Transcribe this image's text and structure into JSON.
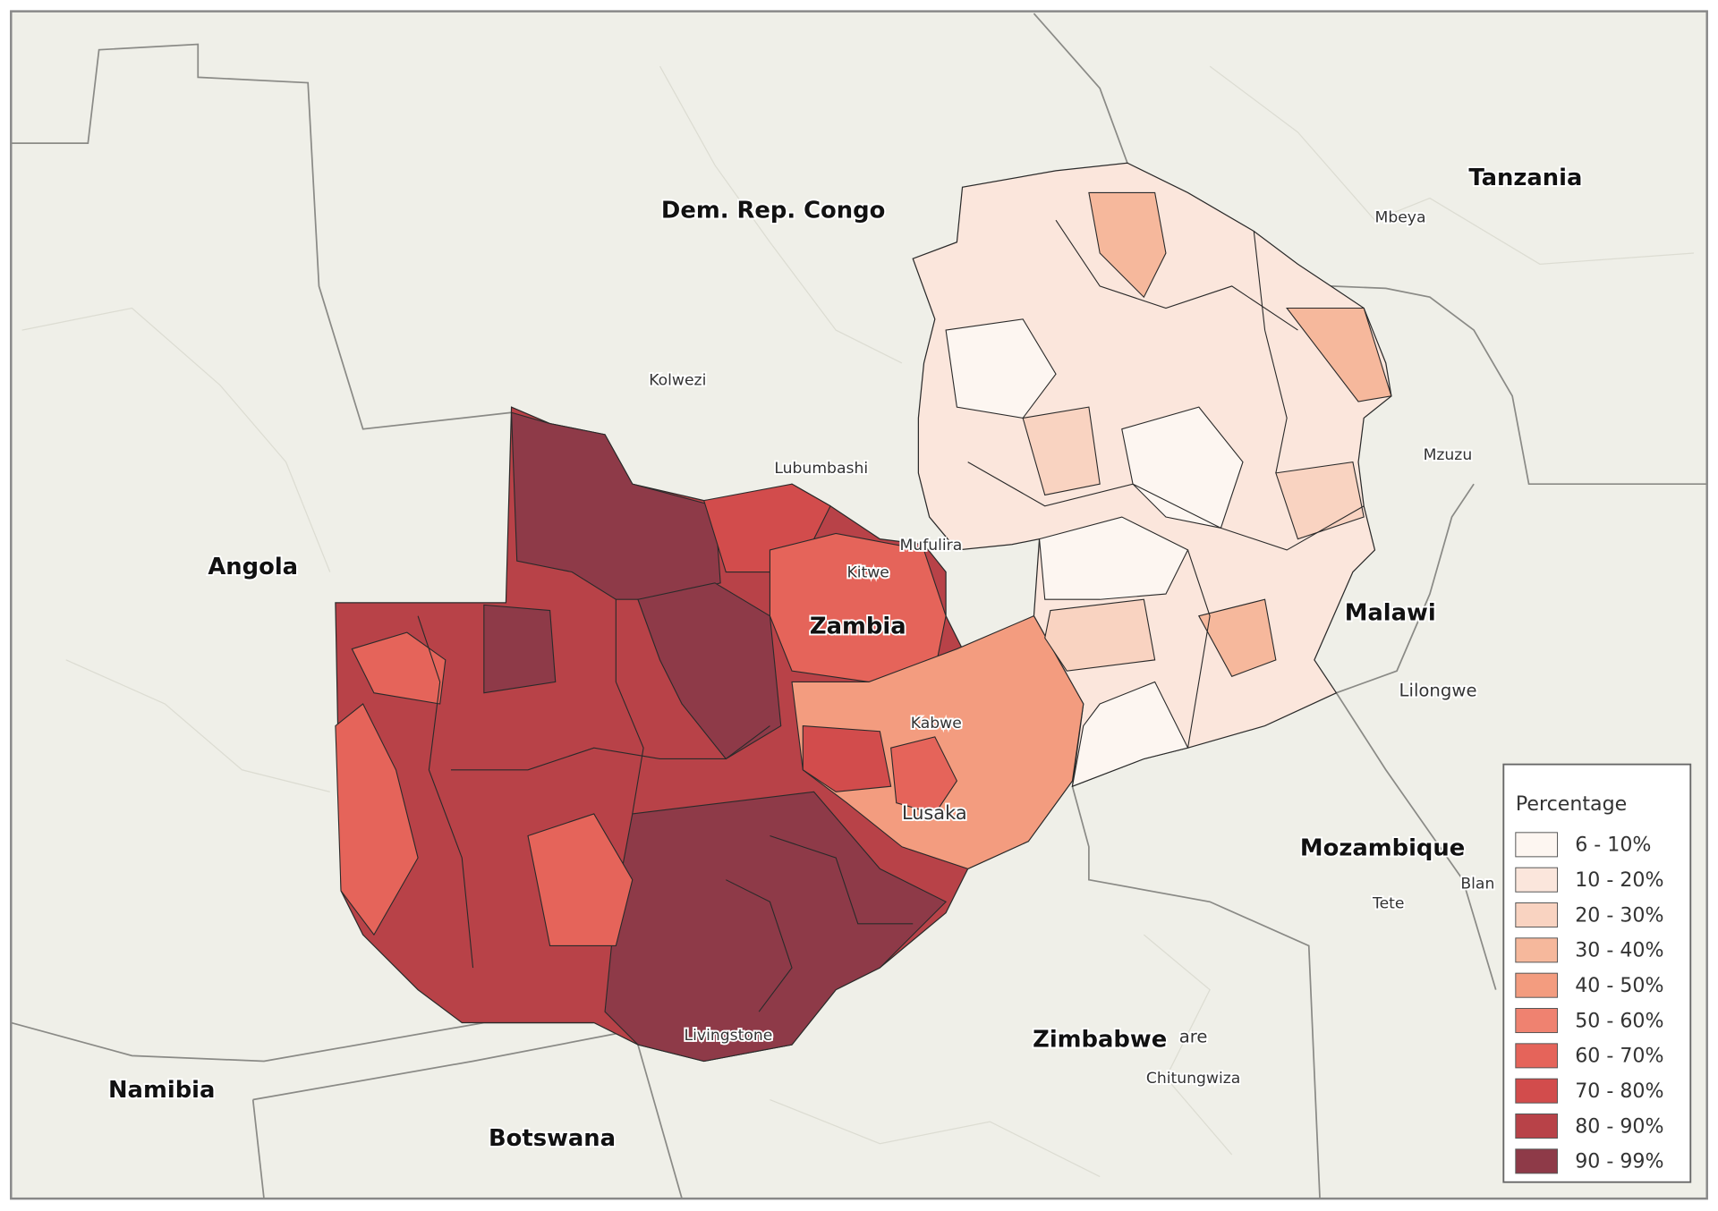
{
  "map": {
    "countries": [
      "Dem. Rep. Congo",
      "Tanzania",
      "Angola",
      "Zambia",
      "Malawi",
      "Mozambique",
      "Zimbabwe",
      "Namibia",
      "Botswana"
    ],
    "cities": [
      "Kolwezi",
      "Lubumbashi",
      "Mufulira",
      "Kitwe",
      "Kabwe",
      "Lusaka",
      "Livingstone",
      "Mbeya",
      "Mzuzu",
      "Lilongwe",
      "Tete",
      "Blan",
      "are",
      "Chitungwiza"
    ]
  },
  "legend": {
    "title": "Percentage",
    "items": [
      {
        "label": "6 - 10%",
        "color": "#fdf6f1"
      },
      {
        "label": "10 - 20%",
        "color": "#fbe6dc"
      },
      {
        "label": "20 - 30%",
        "color": "#f9d3c1"
      },
      {
        "label": "30 - 40%",
        "color": "#f6b89c"
      },
      {
        "label": "40 - 50%",
        "color": "#f39c7f"
      },
      {
        "label": "50 - 60%",
        "color": "#ef8270"
      },
      {
        "label": "60 - 70%",
        "color": "#e5645a"
      },
      {
        "label": "70 - 80%",
        "color": "#d24c4c"
      },
      {
        "label": "80 - 90%",
        "color": "#b84248"
      },
      {
        "label": "90 - 99%",
        "color": "#8e3a48"
      }
    ]
  }
}
